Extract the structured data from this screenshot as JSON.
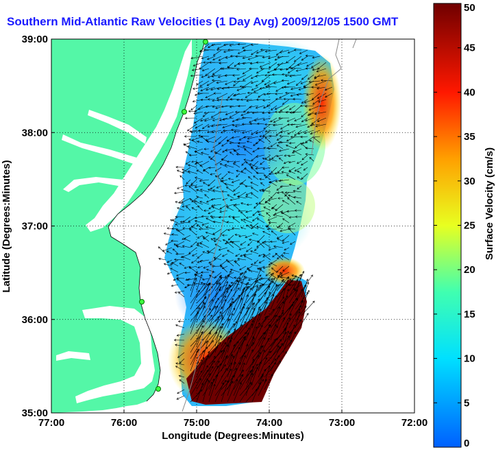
{
  "chart_data": {
    "type": "heatmap",
    "title": "Southern Mid-Atlantic Raw Velocities (1 Day Avg) 2009/12/05 1500 GMT",
    "xlabel": "Longitude (Degrees:Minutes)",
    "ylabel": "Latitude (Degrees:Minutes)",
    "x_ticks": [
      "77:00",
      "76:00",
      "75:00",
      "74:00",
      "73:00",
      "72:00"
    ],
    "x_tick_values": [
      -77,
      -76,
      -75,
      -74,
      -73,
      -72
    ],
    "y_ticks": [
      "35:00",
      "36:00",
      "37:00",
      "38:00",
      "39:00"
    ],
    "y_tick_values": [
      35,
      36,
      37,
      38,
      39
    ],
    "xlim": [
      -77,
      -72
    ],
    "ylim": [
      35,
      39
    ],
    "grid": "dotted",
    "colorbar": {
      "label": "Surface Velocity (cm/s)",
      "range": [
        0,
        50
      ],
      "ticks": [
        "0",
        "5",
        "10",
        "15",
        "20",
        "25",
        "30",
        "35",
        "40",
        "45",
        "50"
      ],
      "tick_values": [
        0,
        5,
        10,
        15,
        20,
        25,
        30,
        35,
        40,
        45,
        50
      ]
    },
    "field_regions": [
      {
        "lon": -74.6,
        "lat": 37.75,
        "value": 8
      },
      {
        "lon": -74.2,
        "lat": 37.35,
        "value": 14
      },
      {
        "lon": -74.6,
        "lat": 36.6,
        "value": 10
      },
      {
        "lon": -74.1,
        "lat": 36.4,
        "value": 16
      },
      {
        "lon": -73.1,
        "lat": 38.35,
        "value": 45
      },
      {
        "lon": -74.2,
        "lat": 35.75,
        "value": 50
      },
      {
        "lon": -74.9,
        "lat": 35.35,
        "value": 38
      }
    ]
  },
  "colors": {
    "land": "#54f7a7",
    "title": "#1a1aff",
    "colormap": [
      "#0000ff",
      "#00ffff",
      "#ffff00",
      "#ff0000",
      "#800000"
    ]
  }
}
